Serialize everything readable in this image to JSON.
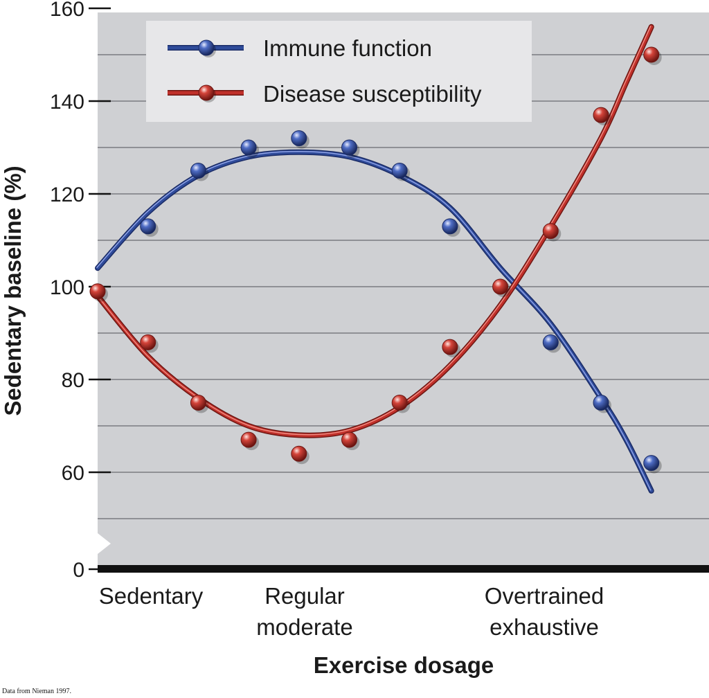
{
  "chart_data": {
    "type": "line",
    "xlabel": "Exercise dosage",
    "ylabel": "Sedentary baseline (%)",
    "ylim": [
      0,
      160
    ],
    "yticks": [
      0,
      60,
      80,
      100,
      120,
      140,
      160
    ],
    "y_axis_break": true,
    "grid": true,
    "legend_position": "top-left",
    "background_color": "#cfd0d3",
    "categories": [
      {
        "label_lines": [
          "Sedentary"
        ],
        "x": 1
      },
      {
        "label_lines": [
          "Regular",
          "moderate"
        ],
        "x": 5
      },
      {
        "label_lines": [
          "Overtrained",
          "exhaustive"
        ],
        "x": 10
      }
    ],
    "series": [
      {
        "name": "Immune function",
        "color": "#2f4b9a",
        "points": [
          {
            "x": 1,
            "y": 113
          },
          {
            "x": 2,
            "y": 125
          },
          {
            "x": 3,
            "y": 130
          },
          {
            "x": 4,
            "y": 132
          },
          {
            "x": 5,
            "y": 130
          },
          {
            "x": 6,
            "y": 125
          },
          {
            "x": 7,
            "y": 113
          },
          {
            "x": 9,
            "y": 88
          },
          {
            "x": 10,
            "y": 75
          },
          {
            "x": 11,
            "y": 62
          }
        ],
        "fit": [
          {
            "x": 0,
            "y": 104
          },
          {
            "x": 1,
            "y": 116
          },
          {
            "x": 2,
            "y": 124
          },
          {
            "x": 3,
            "y": 128
          },
          {
            "x": 4,
            "y": 129
          },
          {
            "x": 5,
            "y": 128
          },
          {
            "x": 6,
            "y": 124
          },
          {
            "x": 7,
            "y": 117
          },
          {
            "x": 8,
            "y": 104
          },
          {
            "x": 9,
            "y": 92
          },
          {
            "x": 10,
            "y": 76
          },
          {
            "x": 10.5,
            "y": 67
          },
          {
            "x": 11,
            "y": 56
          }
        ]
      },
      {
        "name": "Disease susceptibility",
        "color": "#c0302a",
        "points": [
          {
            "x": 0,
            "y": 99
          },
          {
            "x": 1,
            "y": 88
          },
          {
            "x": 2,
            "y": 75
          },
          {
            "x": 3,
            "y": 67
          },
          {
            "x": 4,
            "y": 64
          },
          {
            "x": 5,
            "y": 67
          },
          {
            "x": 6,
            "y": 75
          },
          {
            "x": 7,
            "y": 87
          },
          {
            "x": 8,
            "y": 100
          },
          {
            "x": 9,
            "y": 112
          },
          {
            "x": 10,
            "y": 137
          },
          {
            "x": 11,
            "y": 150
          }
        ],
        "fit": [
          {
            "x": 0,
            "y": 98
          },
          {
            "x": 1,
            "y": 85
          },
          {
            "x": 2,
            "y": 76
          },
          {
            "x": 3,
            "y": 70
          },
          {
            "x": 4,
            "y": 68
          },
          {
            "x": 5,
            "y": 69
          },
          {
            "x": 6,
            "y": 74
          },
          {
            "x": 7,
            "y": 83
          },
          {
            "x": 8,
            "y": 96
          },
          {
            "x": 9,
            "y": 113
          },
          {
            "x": 10,
            "y": 132
          },
          {
            "x": 10.5,
            "y": 144
          },
          {
            "x": 11,
            "y": 156
          }
        ]
      }
    ]
  },
  "source_note": "Data from Nieman 1997."
}
